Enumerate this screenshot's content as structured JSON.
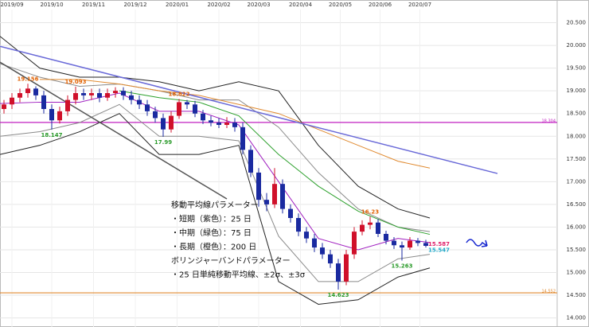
{
  "chart_data": {
    "type": "candlestick",
    "xlim": [
      0,
      140
    ],
    "ylim": [
      13.8,
      21.0
    ],
    "xticks": [
      {
        "value": 3,
        "label": "2019/09"
      },
      {
        "value": 13,
        "label": "2019/10"
      },
      {
        "value": 23.5,
        "label": "2019/11"
      },
      {
        "value": 34,
        "label": "2019/12"
      },
      {
        "value": 44.5,
        "label": "2020/01"
      },
      {
        "value": 55,
        "label": "2020/02"
      },
      {
        "value": 65,
        "label": "2020/03"
      },
      {
        "value": 75.5,
        "label": "2020/04"
      },
      {
        "value": 85.5,
        "label": "2020/05"
      },
      {
        "value": 95.5,
        "label": "2020/06"
      },
      {
        "value": 105.5,
        "label": "2020/07"
      }
    ],
    "yticks": [
      {
        "value": 20.5,
        "label": "20.500"
      },
      {
        "value": 20.0,
        "label": "20.000"
      },
      {
        "value": 19.5,
        "label": "19.500"
      },
      {
        "value": 19.0,
        "label": "19.000"
      },
      {
        "value": 18.5,
        "label": "18.500"
      },
      {
        "value": 18.0,
        "label": "18.000"
      },
      {
        "value": 17.5,
        "label": "17.500"
      },
      {
        "value": 17.0,
        "label": "17.000"
      },
      {
        "value": 16.5,
        "label": "16.500"
      },
      {
        "value": 16.0,
        "label": "16.000"
      },
      {
        "value": 15.5,
        "label": "15.500"
      },
      {
        "value": 15.0,
        "label": "15.000"
      },
      {
        "value": 14.5,
        "label": "14.500"
      },
      {
        "value": 14.0,
        "label": "14.000"
      }
    ],
    "grid": true,
    "up_color": "#d0102a",
    "down_color": "#1a2aa0",
    "x": [
      1,
      3,
      5,
      7,
      9,
      11,
      13,
      15,
      17,
      19,
      21,
      23,
      25,
      27,
      29,
      31,
      33,
      35,
      37,
      39,
      41,
      43,
      45,
      47,
      49,
      51,
      53,
      55,
      57,
      59,
      61,
      63,
      65,
      67,
      69,
      71,
      73,
      75,
      77,
      79,
      81,
      83,
      85,
      87,
      89,
      91,
      93,
      95,
      97,
      99,
      101,
      103,
      105,
      107
    ],
    "open": [
      18.6,
      18.7,
      18.85,
      18.95,
      19.05,
      18.9,
      18.6,
      18.35,
      18.55,
      18.8,
      18.95,
      18.9,
      18.95,
      18.85,
      18.95,
      19.0,
      18.9,
      18.8,
      18.7,
      18.55,
      18.4,
      18.15,
      18.45,
      18.75,
      18.7,
      18.5,
      18.35,
      18.3,
      18.25,
      18.3,
      18.2,
      17.7,
      17.2,
      16.6,
      16.5,
      16.95,
      16.4,
      16.2,
      15.9,
      15.75,
      15.55,
      15.4,
      15.2,
      14.8,
      15.4,
      15.9,
      16.05,
      16.1,
      15.85,
      15.7,
      15.6,
      15.55,
      15.7,
      15.65
    ],
    "high": [
      18.8,
      18.95,
      19.05,
      19.156,
      19.1,
      19.0,
      18.7,
      18.65,
      18.9,
      19.093,
      19.05,
      19.05,
      19.05,
      19.05,
      19.08,
      19.08,
      19.0,
      18.9,
      18.8,
      18.65,
      18.5,
      18.55,
      18.822,
      18.8,
      18.78,
      18.58,
      18.45,
      18.4,
      18.42,
      18.4,
      18.3,
      17.8,
      17.3,
      16.75,
      17.3,
      17.05,
      16.5,
      16.3,
      16.0,
      15.85,
      15.65,
      15.5,
      15.3,
      15.5,
      16.0,
      16.15,
      16.23,
      16.18,
      15.92,
      15.78,
      15.68,
      15.78,
      15.76,
      15.72
    ],
    "low": [
      18.5,
      18.6,
      18.75,
      18.85,
      18.8,
      18.5,
      18.147,
      18.28,
      18.45,
      18.7,
      18.8,
      18.8,
      18.75,
      18.78,
      18.85,
      18.8,
      18.7,
      18.6,
      18.45,
      18.3,
      17.99,
      18.08,
      18.38,
      18.6,
      18.42,
      18.27,
      18.22,
      18.18,
      18.18,
      18.1,
      17.6,
      17.1,
      16.45,
      16.35,
      16.42,
      16.3,
      16.1,
      15.8,
      15.65,
      15.45,
      15.3,
      15.1,
      14.623,
      14.72,
      15.3,
      15.82,
      15.95,
      15.78,
      15.62,
      15.52,
      15.263,
      15.5,
      15.58,
      15.55
    ],
    "close": [
      18.7,
      18.85,
      18.95,
      19.05,
      18.9,
      18.6,
      18.35,
      18.55,
      18.8,
      18.95,
      18.9,
      18.95,
      18.85,
      18.95,
      19.0,
      18.9,
      18.8,
      18.7,
      18.55,
      18.4,
      18.15,
      18.45,
      18.75,
      18.7,
      18.5,
      18.35,
      18.3,
      18.25,
      18.3,
      18.2,
      17.7,
      17.2,
      16.6,
      16.5,
      16.95,
      16.4,
      16.2,
      15.9,
      15.75,
      15.55,
      15.4,
      15.2,
      14.8,
      15.4,
      15.9,
      16.05,
      16.1,
      15.85,
      15.7,
      15.6,
      15.55,
      15.7,
      15.65,
      15.587
    ],
    "line_x": [
      0,
      10,
      20,
      30,
      40,
      50,
      60,
      70,
      80,
      90,
      100,
      108
    ],
    "lines": [
      {
        "color": "#8a8a8a",
        "values": [
          19.6,
          19.3,
          19.1,
          19.15,
          19.0,
          18.8,
          18.8,
          18.2,
          17.2,
          16.4,
          16.0,
          15.9
        ]
      },
      {
        "color": "#8a8a8a",
        "values": [
          18.0,
          18.1,
          18.3,
          18.7,
          18.0,
          18.0,
          17.9,
          15.8,
          14.8,
          14.8,
          15.3,
          15.4
        ]
      },
      {
        "color": "#222222",
        "values": [
          20.2,
          19.5,
          19.3,
          19.3,
          19.2,
          19.0,
          19.2,
          19.0,
          17.8,
          16.9,
          16.4,
          16.2
        ]
      },
      {
        "color": "#222222",
        "values": [
          17.6,
          17.8,
          18.1,
          18.5,
          17.6,
          17.6,
          17.8,
          14.8,
          14.3,
          14.4,
          14.9,
          15.1
        ]
      },
      {
        "color": "#e08a30",
        "values": [
          null,
          19.25,
          19.25,
          19.15,
          19.0,
          18.9,
          18.7,
          18.5,
          18.15,
          17.8,
          17.45,
          17.3
        ]
      },
      {
        "color": "#2ca02c",
        "values": [
          null,
          null,
          null,
          19.0,
          18.85,
          18.75,
          18.45,
          17.6,
          16.9,
          16.35,
          16.0,
          15.84
        ]
      },
      {
        "color": "#a020c0",
        "values": [
          18.72,
          18.75,
          18.75,
          18.95,
          18.55,
          18.55,
          18.25,
          17.0,
          15.75,
          15.5,
          15.75,
          15.66
        ]
      }
    ],
    "trendlines": [
      {
        "color": "#6a6ad8",
        "x": [
          0,
          125
        ],
        "values": [
          19.98,
          17.18
        ]
      },
      {
        "color": "#555555",
        "x": [
          0,
          57
        ],
        "values": [
          19.63,
          16.62
        ]
      }
    ],
    "hlines": [
      {
        "color": "#c020c0",
        "value": 18.304
      },
      {
        "color": "#e08a30",
        "value": 14.552
      }
    ],
    "annotations": [
      {
        "x": 7,
        "value": 19.156,
        "color": "#e06000",
        "pos": "above"
      },
      {
        "x": 19,
        "value": 19.093,
        "color": "#e06000",
        "pos": "above"
      },
      {
        "x": 13,
        "value": 18.147,
        "color": "#2a9a2a",
        "pos": "below"
      },
      {
        "x": 45,
        "value": 18.822,
        "color": "#e06000",
        "pos": "above"
      },
      {
        "x": 41,
        "value": 17.99,
        "color": "#2a9a2a",
        "pos": "below"
      },
      {
        "x": 93,
        "value": 16.23,
        "color": "#e06000",
        "pos": "above"
      },
      {
        "x": 85,
        "value": 14.623,
        "color": "#2a9a2a",
        "pos": "below"
      },
      {
        "x": 101,
        "value": 15.263,
        "color": "#2a9a2a",
        "pos": "below"
      }
    ],
    "current": [
      {
        "value": 15.587,
        "color": "#e0206a"
      },
      {
        "value": 15.547,
        "color": "#20a8c8"
      }
    ],
    "info": [
      "移動平均線パラメーター",
      "・短期（紫色）：25 日",
      "・中期（緑色）：75 日",
      "・長期（橙色）：200 日",
      "ボリンジャーバンドパラメーター",
      "・25 日単純移動平均線、±2σ、±3σ"
    ]
  }
}
